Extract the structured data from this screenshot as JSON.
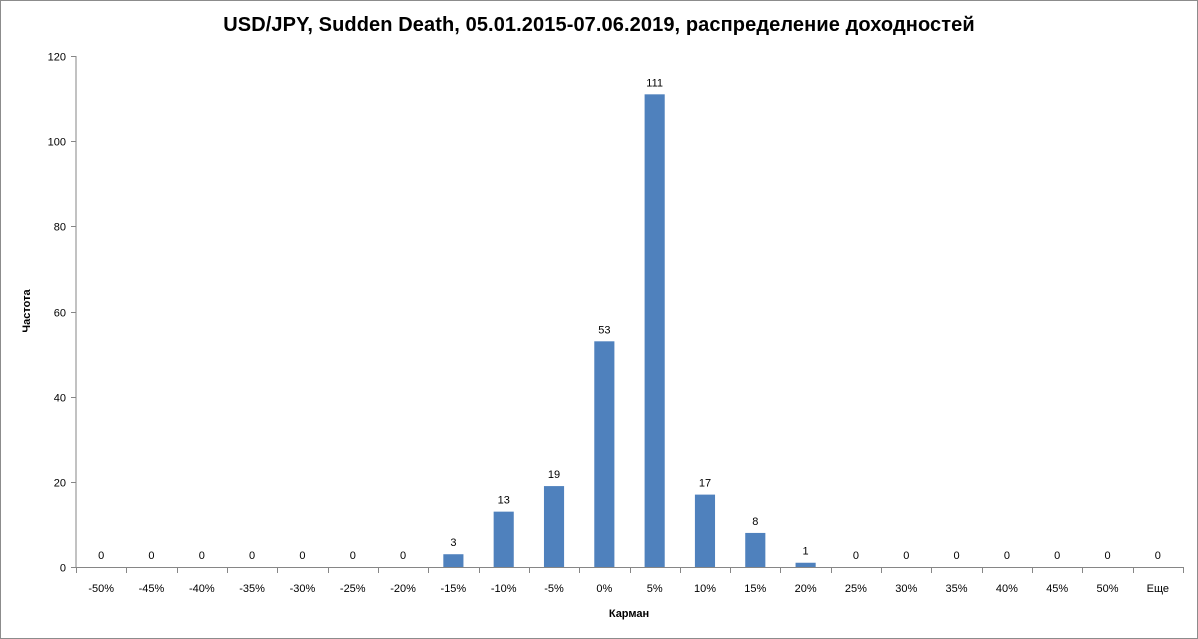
{
  "chart_data": {
    "type": "bar",
    "title": "USD/JPY, Sudden Death, 05.01.2015-07.06.2019,  распределение доходностей",
    "xlabel": "Карман",
    "ylabel": "Частота",
    "ylim": [
      0,
      120
    ],
    "yticks": [
      0,
      20,
      40,
      60,
      80,
      100,
      120
    ],
    "categories": [
      "-50%",
      "-45%",
      "-40%",
      "-35%",
      "-30%",
      "-25%",
      "-20%",
      "-15%",
      "-10%",
      "-5%",
      "0%",
      "5%",
      "10%",
      "15%",
      "20%",
      "25%",
      "30%",
      "35%",
      "40%",
      "45%",
      "50%",
      "Еще"
    ],
    "values": [
      0,
      0,
      0,
      0,
      0,
      0,
      0,
      3,
      13,
      19,
      53,
      111,
      17,
      8,
      1,
      0,
      0,
      0,
      0,
      0,
      0,
      0
    ],
    "data_labels": true,
    "grid": false,
    "legend": "none"
  },
  "colors": {
    "bar": "#4f81bd",
    "axis": "#868686",
    "text": "#000000"
  }
}
